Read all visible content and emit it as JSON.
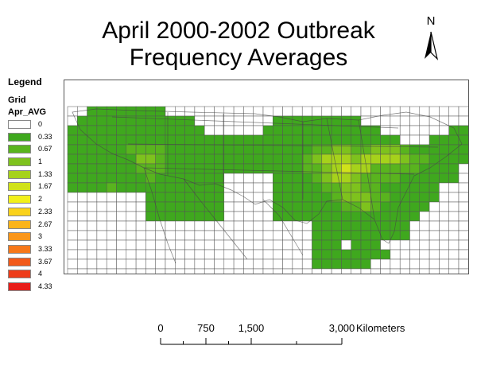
{
  "title": {
    "line1": "April 2000-2002 Outbreak",
    "line2": "Frequency Averages"
  },
  "north_arrow": {
    "label": "N"
  },
  "legend": {
    "title": "Legend",
    "layer": "Grid",
    "field": "Apr_AVG",
    "classes": [
      {
        "label": "0",
        "color": "#ffffff"
      },
      {
        "label": "0.33",
        "color": "#3fa81e"
      },
      {
        "label": "0.67",
        "color": "#59b41e"
      },
      {
        "label": "1",
        "color": "#7ec21d"
      },
      {
        "label": "1.33",
        "color": "#a6d21b"
      },
      {
        "label": "1.67",
        "color": "#d0e21a"
      },
      {
        "label": "2",
        "color": "#f2f01a"
      },
      {
        "label": "2.33",
        "color": "#fad21a"
      },
      {
        "label": "2.67",
        "color": "#fbb41a"
      },
      {
        "label": "3",
        "color": "#fa961a"
      },
      {
        "label": "3.33",
        "color": "#f6781a"
      },
      {
        "label": "3.67",
        "color": "#f25a1a"
      },
      {
        "label": "4",
        "color": "#ee3c1a"
      },
      {
        "label": "4.33",
        "color": "#e81e1a"
      }
    ]
  },
  "scale_bar": {
    "ticks": [
      "0",
      "750",
      "1,500",
      "3,000"
    ],
    "tick_values": [
      0,
      750,
      1500,
      3000
    ],
    "unit": "Kilometers"
  },
  "grid": {
    "cols": 41,
    "rows": 19,
    "cells": [
      "00111111110000000000000000000000000000000",
      "01111111111110000000011111111100000000000",
      "11111111111111000000111111111111000000011",
      "11111111111111111111111111111111110001111",
      "11111122221111111111111112233223332111111",
      "11111113321111111111111123444344443221111",
      "11111112221111111111111122345442222211110",
      "11111111211111110000011112344322221111110",
      "11112111111111110000011111223322111111000",
      "00000000111111110000011111123332211111000",
      "00000000111111110000011111112232111110000",
      "00000000111111110000011111111111111100000",
      "00000000000000000000000001111111111000000",
      "00000000000000000000000001111111111000000",
      "00000000000000000000000001110111000000000",
      "00000000000000000000000001111111100000000",
      "00000000000000000000000001111110000000000",
      "00000000000000000000000000000000000000000",
      "00000000000000000000000000000000000000000"
    ]
  }
}
